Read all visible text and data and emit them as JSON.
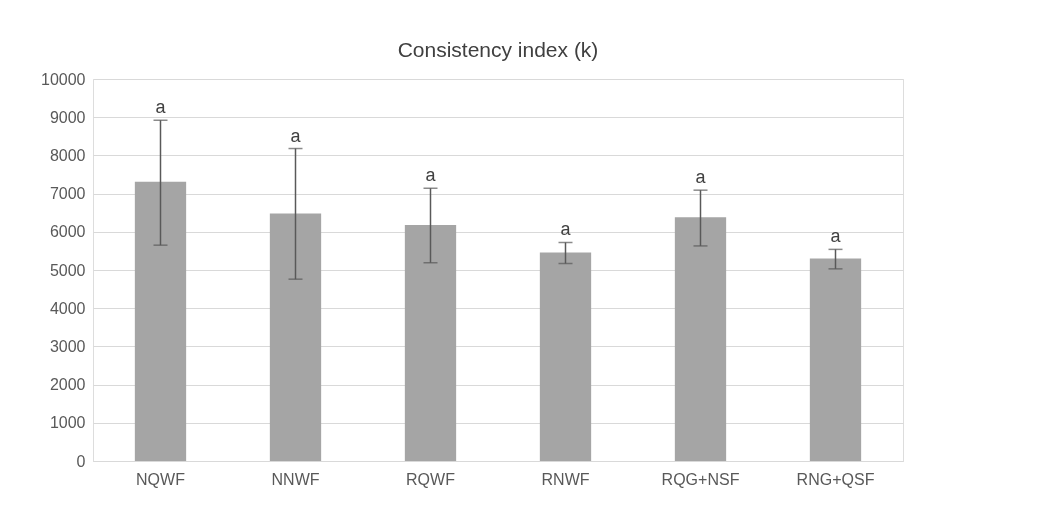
{
  "chart_data": {
    "type": "bar",
    "title": "Consistency index (k)",
    "categories": [
      "NQWF",
      "NNWF",
      "RQWF",
      "RNWF",
      "RQG+NSF",
      "RNG+QSF"
    ],
    "values": [
      7310,
      6480,
      6180,
      5460,
      6380,
      5300
    ],
    "errors": [
      [
        5650,
        8920
      ],
      [
        4760,
        8180
      ],
      [
        5190,
        7140
      ],
      [
        5170,
        5720
      ],
      [
        5630,
        7090
      ],
      [
        5030,
        5540
      ]
    ],
    "color": "#a5a5a5",
    "ylim": [
      0,
      10000
    ],
    "yticks": [
      0,
      1000,
      2000,
      3000,
      4000,
      5000,
      6000,
      7000,
      8000,
      9000,
      10000
    ],
    "grid": "y",
    "annotations": [
      {
        "text": "a",
        "x": "NQWF",
        "y": 8920
      },
      {
        "text": "a",
        "x": "NNWF",
        "y": 8180
      },
      {
        "text": "a",
        "x": "RQWF",
        "y": 7140
      },
      {
        "text": "a",
        "x": "RNWF",
        "y": 5720
      },
      {
        "text": "a",
        "x": "RQG+NSF",
        "y": 7090
      },
      {
        "text": "a",
        "x": "RNG+QSF",
        "y": 5540
      }
    ]
  }
}
